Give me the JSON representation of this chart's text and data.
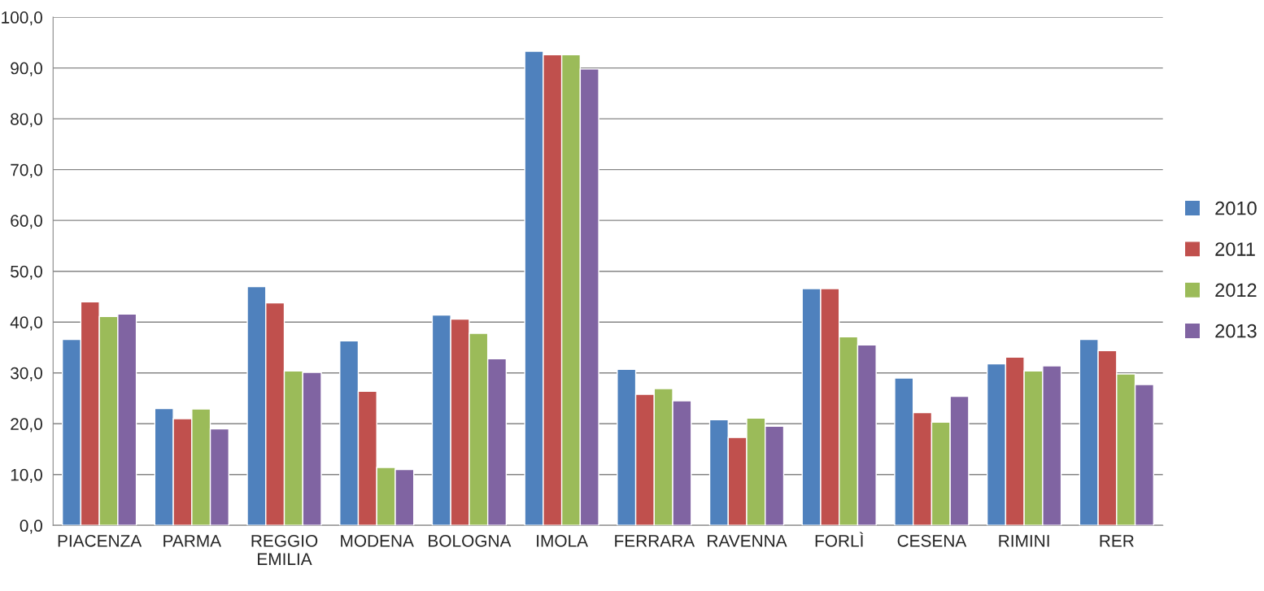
{
  "chart_data": {
    "type": "bar",
    "categories": [
      "PIACENZA",
      "PARMA",
      "REGGIO\nEMILIA",
      "MODENA",
      "BOLOGNA",
      "IMOLA",
      "FERRARA",
      "RAVENNA",
      "FORLÌ",
      "CESENA",
      "RIMINI",
      "RER"
    ],
    "series": [
      {
        "name": "2010",
        "color": "#4f81bd",
        "values": [
          36.6,
          23.0,
          47.0,
          36.3,
          41.4,
          93.3,
          30.7,
          20.8,
          46.6,
          29.0,
          31.8,
          36.6
        ]
      },
      {
        "name": "2011",
        "color": "#c0504d",
        "values": [
          44.0,
          21.0,
          43.8,
          26.4,
          40.6,
          92.6,
          25.8,
          17.3,
          46.6,
          22.2,
          33.1,
          34.4
        ]
      },
      {
        "name": "2012",
        "color": "#9bbb59",
        "values": [
          41.1,
          22.9,
          30.4,
          11.4,
          37.8,
          92.6,
          26.9,
          21.1,
          37.1,
          20.3,
          30.4,
          29.8
        ]
      },
      {
        "name": "2013",
        "color": "#8064a2",
        "values": [
          41.6,
          19.0,
          30.1,
          11.0,
          32.8,
          89.8,
          24.5,
          19.5,
          35.5,
          25.4,
          31.4,
          27.7
        ]
      }
    ],
    "ylim": [
      0,
      100
    ],
    "yticks": [
      {
        "value": 0,
        "label": "0,0"
      },
      {
        "value": 10,
        "label": "10,0"
      },
      {
        "value": 20,
        "label": "20,0"
      },
      {
        "value": 30,
        "label": "30,0"
      },
      {
        "value": 40,
        "label": "40,0"
      },
      {
        "value": 50,
        "label": "50,0"
      },
      {
        "value": 60,
        "label": "60,0"
      },
      {
        "value": 70,
        "label": "70,0"
      },
      {
        "value": 80,
        "label": "80,0"
      },
      {
        "value": 90,
        "label": "90,0"
      },
      {
        "value": 100,
        "label": "100,0"
      }
    ],
    "grid": "y",
    "legend": "right"
  }
}
